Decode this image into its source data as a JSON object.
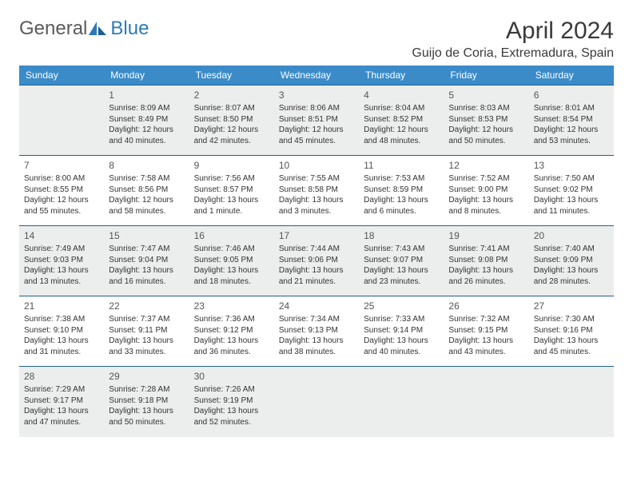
{
  "logo": {
    "general": "General",
    "blue": "Blue"
  },
  "title": "April 2024",
  "location": "Guijo de Coria, Extremadura, Spain",
  "colors": {
    "header_bg": "#3b8bc9",
    "header_text": "#ffffff",
    "rule": "#20618f",
    "shaded_bg": "#eceded",
    "logo_blue": "#2a7ab9",
    "logo_gray": "#5a5a5a"
  },
  "weekdays": [
    "Sunday",
    "Monday",
    "Tuesday",
    "Wednesday",
    "Thursday",
    "Friday",
    "Saturday"
  ],
  "weeks": [
    {
      "shaded": true,
      "days": [
        null,
        {
          "n": "1",
          "sr": "Sunrise: 8:09 AM",
          "ss": "Sunset: 8:49 PM",
          "d1": "Daylight: 12 hours",
          "d2": "and 40 minutes."
        },
        {
          "n": "2",
          "sr": "Sunrise: 8:07 AM",
          "ss": "Sunset: 8:50 PM",
          "d1": "Daylight: 12 hours",
          "d2": "and 42 minutes."
        },
        {
          "n": "3",
          "sr": "Sunrise: 8:06 AM",
          "ss": "Sunset: 8:51 PM",
          "d1": "Daylight: 12 hours",
          "d2": "and 45 minutes."
        },
        {
          "n": "4",
          "sr": "Sunrise: 8:04 AM",
          "ss": "Sunset: 8:52 PM",
          "d1": "Daylight: 12 hours",
          "d2": "and 48 minutes."
        },
        {
          "n": "5",
          "sr": "Sunrise: 8:03 AM",
          "ss": "Sunset: 8:53 PM",
          "d1": "Daylight: 12 hours",
          "d2": "and 50 minutes."
        },
        {
          "n": "6",
          "sr": "Sunrise: 8:01 AM",
          "ss": "Sunset: 8:54 PM",
          "d1": "Daylight: 12 hours",
          "d2": "and 53 minutes."
        }
      ]
    },
    {
      "shaded": false,
      "days": [
        {
          "n": "7",
          "sr": "Sunrise: 8:00 AM",
          "ss": "Sunset: 8:55 PM",
          "d1": "Daylight: 12 hours",
          "d2": "and 55 minutes."
        },
        {
          "n": "8",
          "sr": "Sunrise: 7:58 AM",
          "ss": "Sunset: 8:56 PM",
          "d1": "Daylight: 12 hours",
          "d2": "and 58 minutes."
        },
        {
          "n": "9",
          "sr": "Sunrise: 7:56 AM",
          "ss": "Sunset: 8:57 PM",
          "d1": "Daylight: 13 hours",
          "d2": "and 1 minute."
        },
        {
          "n": "10",
          "sr": "Sunrise: 7:55 AM",
          "ss": "Sunset: 8:58 PM",
          "d1": "Daylight: 13 hours",
          "d2": "and 3 minutes."
        },
        {
          "n": "11",
          "sr": "Sunrise: 7:53 AM",
          "ss": "Sunset: 8:59 PM",
          "d1": "Daylight: 13 hours",
          "d2": "and 6 minutes."
        },
        {
          "n": "12",
          "sr": "Sunrise: 7:52 AM",
          "ss": "Sunset: 9:00 PM",
          "d1": "Daylight: 13 hours",
          "d2": "and 8 minutes."
        },
        {
          "n": "13",
          "sr": "Sunrise: 7:50 AM",
          "ss": "Sunset: 9:02 PM",
          "d1": "Daylight: 13 hours",
          "d2": "and 11 minutes."
        }
      ]
    },
    {
      "shaded": true,
      "days": [
        {
          "n": "14",
          "sr": "Sunrise: 7:49 AM",
          "ss": "Sunset: 9:03 PM",
          "d1": "Daylight: 13 hours",
          "d2": "and 13 minutes."
        },
        {
          "n": "15",
          "sr": "Sunrise: 7:47 AM",
          "ss": "Sunset: 9:04 PM",
          "d1": "Daylight: 13 hours",
          "d2": "and 16 minutes."
        },
        {
          "n": "16",
          "sr": "Sunrise: 7:46 AM",
          "ss": "Sunset: 9:05 PM",
          "d1": "Daylight: 13 hours",
          "d2": "and 18 minutes."
        },
        {
          "n": "17",
          "sr": "Sunrise: 7:44 AM",
          "ss": "Sunset: 9:06 PM",
          "d1": "Daylight: 13 hours",
          "d2": "and 21 minutes."
        },
        {
          "n": "18",
          "sr": "Sunrise: 7:43 AM",
          "ss": "Sunset: 9:07 PM",
          "d1": "Daylight: 13 hours",
          "d2": "and 23 minutes."
        },
        {
          "n": "19",
          "sr": "Sunrise: 7:41 AM",
          "ss": "Sunset: 9:08 PM",
          "d1": "Daylight: 13 hours",
          "d2": "and 26 minutes."
        },
        {
          "n": "20",
          "sr": "Sunrise: 7:40 AM",
          "ss": "Sunset: 9:09 PM",
          "d1": "Daylight: 13 hours",
          "d2": "and 28 minutes."
        }
      ]
    },
    {
      "shaded": false,
      "days": [
        {
          "n": "21",
          "sr": "Sunrise: 7:38 AM",
          "ss": "Sunset: 9:10 PM",
          "d1": "Daylight: 13 hours",
          "d2": "and 31 minutes."
        },
        {
          "n": "22",
          "sr": "Sunrise: 7:37 AM",
          "ss": "Sunset: 9:11 PM",
          "d1": "Daylight: 13 hours",
          "d2": "and 33 minutes."
        },
        {
          "n": "23",
          "sr": "Sunrise: 7:36 AM",
          "ss": "Sunset: 9:12 PM",
          "d1": "Daylight: 13 hours",
          "d2": "and 36 minutes."
        },
        {
          "n": "24",
          "sr": "Sunrise: 7:34 AM",
          "ss": "Sunset: 9:13 PM",
          "d1": "Daylight: 13 hours",
          "d2": "and 38 minutes."
        },
        {
          "n": "25",
          "sr": "Sunrise: 7:33 AM",
          "ss": "Sunset: 9:14 PM",
          "d1": "Daylight: 13 hours",
          "d2": "and 40 minutes."
        },
        {
          "n": "26",
          "sr": "Sunrise: 7:32 AM",
          "ss": "Sunset: 9:15 PM",
          "d1": "Daylight: 13 hours",
          "d2": "and 43 minutes."
        },
        {
          "n": "27",
          "sr": "Sunrise: 7:30 AM",
          "ss": "Sunset: 9:16 PM",
          "d1": "Daylight: 13 hours",
          "d2": "and 45 minutes."
        }
      ]
    },
    {
      "shaded": true,
      "days": [
        {
          "n": "28",
          "sr": "Sunrise: 7:29 AM",
          "ss": "Sunset: 9:17 PM",
          "d1": "Daylight: 13 hours",
          "d2": "and 47 minutes."
        },
        {
          "n": "29",
          "sr": "Sunrise: 7:28 AM",
          "ss": "Sunset: 9:18 PM",
          "d1": "Daylight: 13 hours",
          "d2": "and 50 minutes."
        },
        {
          "n": "30",
          "sr": "Sunrise: 7:26 AM",
          "ss": "Sunset: 9:19 PM",
          "d1": "Daylight: 13 hours",
          "d2": "and 52 minutes."
        },
        null,
        null,
        null,
        null
      ]
    }
  ]
}
